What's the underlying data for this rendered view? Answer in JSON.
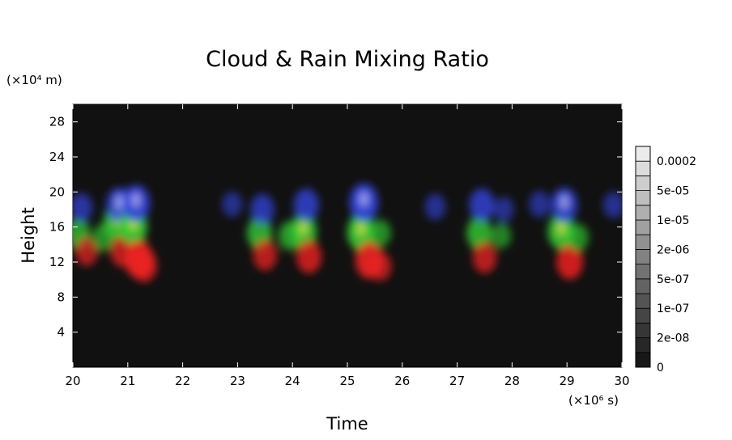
{
  "chart_data": {
    "type": "heatmap",
    "title": "Cloud & Rain Mixing Ratio",
    "xlabel": "Time",
    "ylabel": "Height",
    "x_unit": "(×10⁶ s)",
    "y_unit": "(×10⁴ m)",
    "xlim": [
      20,
      30
    ],
    "ylim": [
      0,
      30
    ],
    "x_ticks": [
      "20",
      "21",
      "22",
      "23",
      "24",
      "25",
      "26",
      "27",
      "28",
      "29",
      "30"
    ],
    "y_ticks": [
      "4",
      "8",
      "12",
      "16",
      "20",
      "24",
      "28"
    ],
    "background_color": "#111111",
    "grid": false,
    "colorbar": {
      "placement": "right",
      "labels": [
        "0",
        "2e-08",
        "1e-07",
        "5e-07",
        "2e-06",
        "1e-05",
        "5e-05",
        "0.0002"
      ]
    },
    "layers": [
      {
        "color": "#3344dd",
        "height_range": [
          17.5,
          19.5
        ]
      },
      {
        "color": "#33cc33",
        "height_range": [
          13.5,
          16.5
        ]
      },
      {
        "color": "#ee2222",
        "height_range": [
          11,
          13.5
        ]
      }
    ],
    "blobs": [
      {
        "x": 20.1,
        "h": 15.2,
        "layer": "green",
        "v": 0.6
      },
      {
        "x": 20.15,
        "h": 18.2,
        "layer": "blue",
        "v": 0.5
      },
      {
        "x": 20.25,
        "h": 13.2,
        "layer": "red",
        "v": 0.5
      },
      {
        "x": 20.8,
        "h": 16.5,
        "layer": "green",
        "v": 0.8
      },
      {
        "x": 20.85,
        "h": 18.5,
        "layer": "blue",
        "v": 0.8
      },
      {
        "x": 20.9,
        "h": 13.2,
        "layer": "red",
        "v": 0.6
      },
      {
        "x": 21.1,
        "h": 16.0,
        "layer": "green",
        "v": 0.9
      },
      {
        "x": 21.15,
        "h": 18.7,
        "layer": "blue",
        "v": 0.9
      },
      {
        "x": 21.2,
        "h": 12.3,
        "layer": "red",
        "v": 0.95
      },
      {
        "x": 21.3,
        "h": 11.6,
        "layer": "red",
        "v": 0.7
      },
      {
        "x": 20.55,
        "h": 14.8,
        "layer": "green",
        "v": 0.4
      },
      {
        "x": 22.9,
        "h": 18.6,
        "layer": "blue",
        "v": 0.3
      },
      {
        "x": 23.4,
        "h": 15.3,
        "layer": "green",
        "v": 0.7
      },
      {
        "x": 23.45,
        "h": 18.0,
        "layer": "blue",
        "v": 0.6
      },
      {
        "x": 23.5,
        "h": 12.8,
        "layer": "red",
        "v": 0.6
      },
      {
        "x": 23.95,
        "h": 15.0,
        "layer": "green",
        "v": 0.5
      },
      {
        "x": 24.2,
        "h": 15.5,
        "layer": "green",
        "v": 0.8
      },
      {
        "x": 24.25,
        "h": 18.5,
        "layer": "blue",
        "v": 0.7
      },
      {
        "x": 24.3,
        "h": 12.6,
        "layer": "red",
        "v": 0.7
      },
      {
        "x": 25.25,
        "h": 15.4,
        "layer": "green",
        "v": 0.9
      },
      {
        "x": 25.3,
        "h": 18.8,
        "layer": "blue",
        "v": 0.95
      },
      {
        "x": 25.4,
        "h": 12.2,
        "layer": "red",
        "v": 0.9
      },
      {
        "x": 25.6,
        "h": 11.5,
        "layer": "red",
        "v": 0.5
      },
      {
        "x": 25.6,
        "h": 15.3,
        "layer": "green",
        "v": 0.4
      },
      {
        "x": 26.6,
        "h": 18.3,
        "layer": "blue",
        "v": 0.35
      },
      {
        "x": 27.4,
        "h": 15.3,
        "layer": "green",
        "v": 0.7
      },
      {
        "x": 27.45,
        "h": 18.5,
        "layer": "blue",
        "v": 0.7
      },
      {
        "x": 27.5,
        "h": 12.5,
        "layer": "red",
        "v": 0.6
      },
      {
        "x": 27.85,
        "h": 18.0,
        "layer": "blue",
        "v": 0.3
      },
      {
        "x": 27.8,
        "h": 15.0,
        "layer": "green",
        "v": 0.3
      },
      {
        "x": 28.5,
        "h": 18.6,
        "layer": "blue",
        "v": 0.35
      },
      {
        "x": 28.9,
        "h": 15.5,
        "layer": "green",
        "v": 0.85
      },
      {
        "x": 28.95,
        "h": 18.5,
        "layer": "blue",
        "v": 0.8
      },
      {
        "x": 29.05,
        "h": 12.0,
        "layer": "red",
        "v": 0.8
      },
      {
        "x": 29.2,
        "h": 14.8,
        "layer": "green",
        "v": 0.4
      },
      {
        "x": 29.85,
        "h": 18.5,
        "layer": "blue",
        "v": 0.35
      }
    ]
  }
}
